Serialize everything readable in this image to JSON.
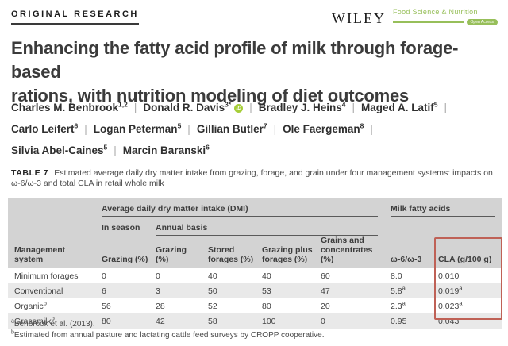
{
  "colors": {
    "accent_green": "#97bf5a",
    "orcid_green": "#a6ce39",
    "highlight_red": "#bf6156",
    "header_bg": "#d3d3d3",
    "row_alt": "#e9e9e9"
  },
  "header": {
    "kicker": "ORIGINAL RESEARCH",
    "publisher": "WILEY",
    "journal": "Food Science & Nutrition",
    "badge": "Open Access",
    "orcid_label": "iD"
  },
  "title_lines": [
    "Enhancing the fatty acid profile of milk through forage-based",
    "rations, with nutrition modeling of diet outcomes"
  ],
  "author_separator": "|",
  "authors": [
    {
      "name": "Charles M. Benbrook",
      "sup": "1,2"
    },
    {
      "name": "Donald R. Davis",
      "sup": "3*",
      "orcid": true
    },
    {
      "name": "Bradley J. Heins",
      "sup": "4"
    },
    {
      "name": "Maged A. Latif",
      "sup": "5",
      "br_after": true
    },
    {
      "name": "Carlo Leifert",
      "sup": "6"
    },
    {
      "name": "Logan Peterman",
      "sup": "5"
    },
    {
      "name": "Gillian Butler",
      "sup": "7"
    },
    {
      "name": "Ole Faergeman",
      "sup": "8",
      "br_after": true
    },
    {
      "name": "Silvia Abel-Caines",
      "sup": "5"
    },
    {
      "name": "Marcin Baranski",
      "sup": "6"
    }
  ],
  "caption": {
    "label": "TABLE 7",
    "text": "Estimated average daily dry matter intake from grazing, forage, and grain under four management systems: impacts on ω-6/ω-3 and total CLA in retail whole milk"
  },
  "table": {
    "groups": {
      "dmi": "Average daily dry matter intake (DMI)",
      "milk": "Milk fatty acids",
      "in_season": "In season",
      "annual": "Annual basis"
    },
    "columns": [
      "Management system",
      "Grazing (%)",
      "Grazing (%)",
      "Stored forages (%)",
      "Grazing plus forages (%)",
      "Grains and concentrates (%)",
      "ω-6/ω-3",
      "CLA (g/100 g)"
    ],
    "rows": [
      {
        "system": "Minimum forages",
        "values": [
          "0",
          "0",
          "40",
          "40",
          "60",
          "8.0",
          "0.010"
        ]
      },
      {
        "system": "Conventional",
        "values": [
          "6",
          "3",
          "50",
          "53",
          "47",
          "5.8^a",
          "0.019^a"
        ]
      },
      {
        "system": "Organic^b",
        "values": [
          "56",
          "28",
          "52",
          "80",
          "20",
          "2.3^a",
          "0.023^a"
        ]
      },
      {
        "system": "Grassmilk^b",
        "values": [
          "80",
          "42",
          "58",
          "100",
          "0",
          "0.95",
          "0.043"
        ]
      }
    ],
    "highlight_column": "CLA (g/100 g)"
  },
  "footnotes": [
    {
      "sup": "a",
      "text": "Benbrook et al. (2013)."
    },
    {
      "sup": "b",
      "text": "Estimated from annual pasture and lactating cattle feed surveys by CROPP cooperative."
    }
  ]
}
